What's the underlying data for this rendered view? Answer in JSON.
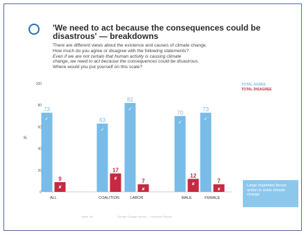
{
  "slide": {
    "title": "'We need to act because the consequences could be disastrous' — breakdowns",
    "intro_lines": [
      "There are different views about the existence and causes of climate change.",
      "How much do you agree or disagree with the following statements?",
      "Even if we are not certain that human activity is causing climate",
      "change, we need to act because the consequences could be disastrous.",
      "Where would you put yourself on this scale?"
    ],
    "callout": "Large majorities favour action to solve climate change",
    "footer_left": "Base: All",
    "footer_right": "Climate Change Survey — Research Report"
  },
  "colors": {
    "agree": "#79bce8",
    "disagree": "#c42a40",
    "accent": "#2b6cb5"
  },
  "chart_data": {
    "type": "bar",
    "categories": [
      "ALL",
      "COALITION",
      "LABOR",
      "MALE",
      "FEMALE"
    ],
    "series": [
      {
        "name": "TOTAL AGREE",
        "values": [
          73,
          63,
          82,
          70,
          73
        ]
      },
      {
        "name": "TOTAL DISAGREE",
        "values": [
          9,
          17,
          7,
          12,
          7
        ]
      }
    ],
    "ylabel": "%",
    "ylim": [
      0,
      100
    ],
    "yticks": [
      0,
      20,
      40,
      60,
      80,
      100
    ],
    "grid": false,
    "legend_position": "top-right",
    "marker_agree": "✓",
    "marker_disagree": "✘"
  }
}
